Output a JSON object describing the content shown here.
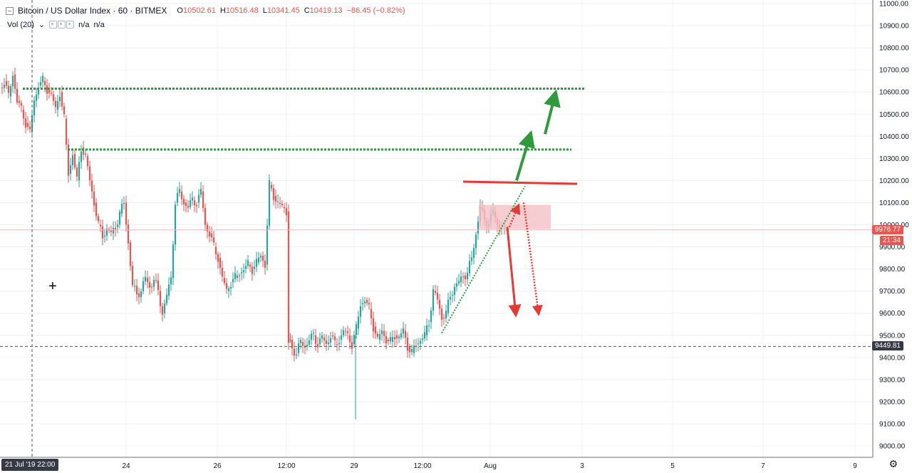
{
  "header": {
    "title": "Bitcoin / US Dollar Index · 60 · BITMEX",
    "open_label": "O",
    "open": "10502.61",
    "high_label": "H",
    "high": "10516.48",
    "low_label": "L",
    "low": "10341.45",
    "close_label": "C",
    "close": "10419.13",
    "change": "−86.45 (−0.82%)"
  },
  "volume": {
    "label": "Vol (20)",
    "value1": "n/a",
    "value2": "n/a"
  },
  "last_price": "9976.77",
  "countdown": "21:34",
  "crosshair_price": "9449.81",
  "crosshair_time": "21 Jul '19   22:00",
  "colors": {
    "up": "#26a69a",
    "down": "#ef5350",
    "level": "#2e9c3c",
    "resistance": "#e53935",
    "zone": "#f4c2c6"
  },
  "chart_data": {
    "type": "candlestick",
    "y_ticks": [
      9000,
      9100,
      9200,
      9300,
      9400,
      9500,
      9600,
      9700,
      9800,
      9900,
      10000,
      10100,
      10200,
      10300,
      10400,
      10500,
      10600,
      10700,
      10800,
      10900,
      11000
    ],
    "y_tick_labels": [
      "9000.00",
      "9100.00",
      "9200.00",
      "9300.00",
      "9400.00",
      "9500.00",
      "9600.00",
      "9700.00",
      "9800.00",
      "9900.00",
      "10000.00",
      "10100.00",
      "10200.00",
      "10300.00",
      "10400.00",
      "10500.00",
      "10600.00",
      "10700.00",
      "10800.00",
      "10900.00",
      "11000.00"
    ],
    "ylim": [
      8965,
      11015
    ],
    "x_ticks": [
      {
        "label": "24",
        "x": 177
      },
      {
        "label": "26",
        "x": 305
      },
      {
        "label": "12:00",
        "x": 402
      },
      {
        "label": "29",
        "x": 497
      },
      {
        "label": "12:00",
        "x": 593
      },
      {
        "label": "Aug",
        "x": 688
      },
      {
        "label": "3",
        "x": 817
      },
      {
        "label": "5",
        "x": 944
      },
      {
        "label": "7",
        "x": 1071
      },
      {
        "label": "9",
        "x": 1200
      }
    ],
    "price_path": [
      [
        0,
        10620
      ],
      [
        6,
        10650
      ],
      [
        12,
        10580
      ],
      [
        18,
        10680
      ],
      [
        24,
        10560
      ],
      [
        30,
        10520
      ],
      [
        36,
        10460
      ],
      [
        42,
        10420
      ],
      [
        48,
        10560
      ],
      [
        54,
        10630
      ],
      [
        60,
        10650
      ],
      [
        66,
        10610
      ],
      [
        72,
        10590
      ],
      [
        78,
        10520
      ],
      [
        84,
        10600
      ],
      [
        90,
        10480
      ],
      [
        96,
        10230
      ],
      [
        102,
        10320
      ],
      [
        108,
        10200
      ],
      [
        114,
        10350
      ],
      [
        120,
        10310
      ],
      [
        126,
        10200
      ],
      [
        132,
        10100
      ],
      [
        138,
        10000
      ],
      [
        144,
        9950
      ],
      [
        150,
        9980
      ],
      [
        156,
        9960
      ],
      [
        162,
        9990
      ],
      [
        168,
        10050
      ],
      [
        174,
        10100
      ],
      [
        180,
        9920
      ],
      [
        186,
        9720
      ],
      [
        192,
        9690
      ],
      [
        198,
        9700
      ],
      [
        204,
        9760
      ],
      [
        210,
        9720
      ],
      [
        216,
        9750
      ],
      [
        222,
        9700
      ],
      [
        228,
        9600
      ],
      [
        234,
        9680
      ],
      [
        240,
        9760
      ],
      [
        246,
        10100
      ],
      [
        252,
        10150
      ],
      [
        258,
        10100
      ],
      [
        264,
        10080
      ],
      [
        270,
        10110
      ],
      [
        276,
        10100
      ],
      [
        282,
        10150
      ],
      [
        288,
        10000
      ],
      [
        294,
        9960
      ],
      [
        300,
        9900
      ],
      [
        306,
        9850
      ],
      [
        312,
        9760
      ],
      [
        318,
        9700
      ],
      [
        324,
        9740
      ],
      [
        330,
        9760
      ],
      [
        336,
        9780
      ],
      [
        342,
        9800
      ],
      [
        348,
        9820
      ],
      [
        354,
        9800
      ],
      [
        360,
        9830
      ],
      [
        366,
        9860
      ],
      [
        372,
        9820
      ],
      [
        378,
        10180
      ],
      [
        384,
        10130
      ],
      [
        390,
        10100
      ],
      [
        396,
        10080
      ],
      [
        402,
        10060
      ],
      [
        405,
        9480
      ],
      [
        410,
        9440
      ],
      [
        416,
        9420
      ],
      [
        422,
        9470
      ],
      [
        428,
        9450
      ],
      [
        434,
        9480
      ],
      [
        440,
        9500
      ],
      [
        446,
        9460
      ],
      [
        452,
        9490
      ],
      [
        458,
        9460
      ],
      [
        464,
        9500
      ],
      [
        470,
        9460
      ],
      [
        476,
        9480
      ],
      [
        482,
        9520
      ],
      [
        488,
        9500
      ],
      [
        494,
        9460
      ],
      [
        500,
        9530
      ],
      [
        506,
        9640
      ],
      [
        512,
        9660
      ],
      [
        518,
        9620
      ],
      [
        524,
        9540
      ],
      [
        530,
        9480
      ],
      [
        536,
        9520
      ],
      [
        542,
        9480
      ],
      [
        548,
        9470
      ],
      [
        554,
        9500
      ],
      [
        560,
        9490
      ],
      [
        566,
        9520
      ],
      [
        572,
        9450
      ],
      [
        578,
        9420
      ],
      [
        584,
        9460
      ],
      [
        590,
        9480
      ],
      [
        596,
        9500
      ],
      [
        602,
        9560
      ],
      [
        608,
        9700
      ],
      [
        614,
        9660
      ],
      [
        620,
        9580
      ],
      [
        626,
        9600
      ],
      [
        632,
        9680
      ],
      [
        638,
        9720
      ],
      [
        644,
        9740
      ],
      [
        650,
        9770
      ],
      [
        656,
        9780
      ],
      [
        662,
        9850
      ],
      [
        668,
        9960
      ],
      [
        674,
        10080
      ],
      [
        680,
        10020
      ],
      [
        686,
        10010
      ],
      [
        692,
        10060
      ],
      [
        698,
        10000
      ],
      [
        704,
        9990
      ],
      [
        708,
        9980
      ]
    ],
    "annotations": {
      "levels": [
        {
          "price": 10615,
          "x0": 32,
          "x1": 822
        },
        {
          "price": 10340,
          "x0": 95,
          "x1": 802
        }
      ],
      "resistance": {
        "x0": 650,
        "p0": 10195,
        "x1": 810,
        "p1": 10185
      },
      "zone": {
        "x0": 672,
        "x1": 773,
        "p_top": 10090,
        "p_bottom": 9980
      },
      "last_price": 9976.77,
      "crosshair_price": 9449.81,
      "crosshair_x": 45,
      "trendline": {
        "x0": 620,
        "p0": 9510,
        "x1": 737,
        "p1": 10175
      },
      "green_arrows": [
        {
          "x0": 725,
          "p0": 10200,
          "x1": 745,
          "p1": 10415
        },
        {
          "x0": 765,
          "p0": 10410,
          "x1": 780,
          "p1": 10600
        }
      ],
      "red_arrows": [
        {
          "x0": 712,
          "p0": 9990,
          "x1": 724,
          "p1": 9590,
          "style": "solid"
        },
        {
          "x0": 715,
          "p0": 9990,
          "x1": 728,
          "p1": 10090,
          "style": "dotted"
        },
        {
          "x0": 735,
          "p0": 10100,
          "x1": 756,
          "p1": 9595,
          "style": "dotted"
        }
      ]
    }
  }
}
